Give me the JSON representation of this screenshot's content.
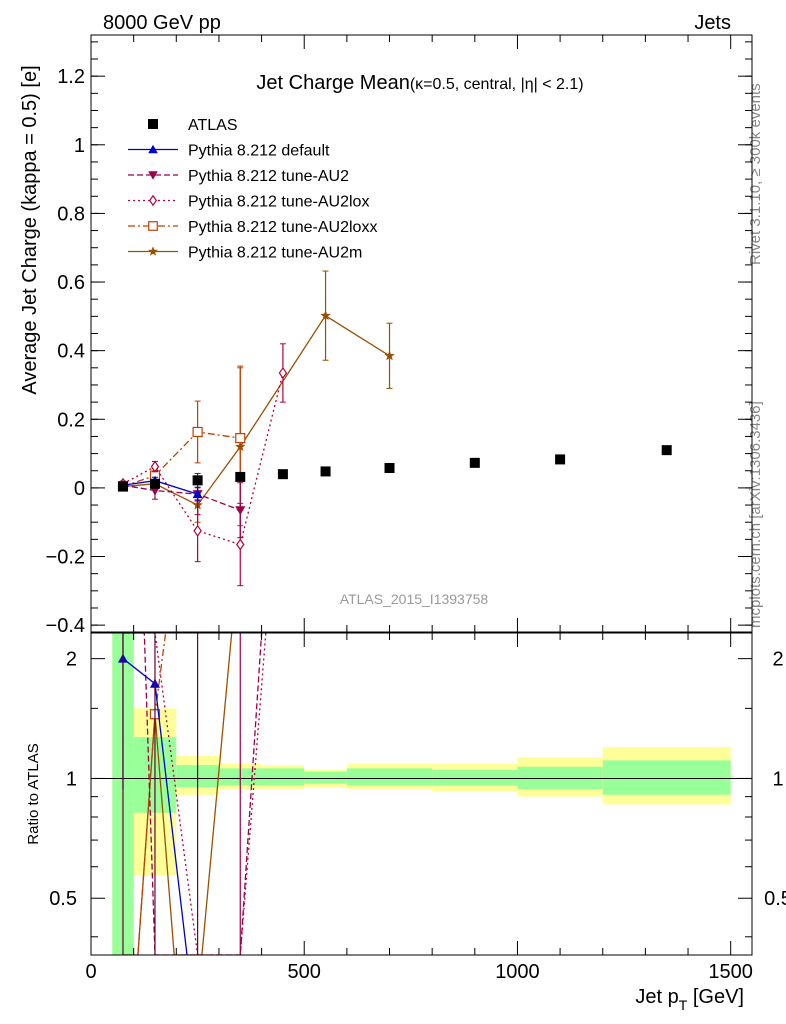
{
  "header": {
    "left": "8000 GeV pp",
    "right": "Jets"
  },
  "side_labels": {
    "rivet": "Rivet 3.1.10, ≥ 300k events",
    "mcplots": "mcplots.cern.ch [arXiv:1306.3436]"
  },
  "chart_data": [
    {
      "type": "scatter",
      "title_main": "Jet Charge Mean",
      "title_sub": "(κ=0.5, central, |η| < 2.1)",
      "ylabel": "Average Jet Charge (kappa = 0.5) [e]",
      "watermark": "ATLAS_2015_I1393758",
      "xlim": [
        0,
        1550
      ],
      "ylim": [
        -0.42,
        1.32
      ],
      "yticks": [
        -0.4,
        -0.2,
        0,
        0.2,
        0.4,
        0.6,
        0.8,
        1,
        1.2
      ],
      "ytick_labels": [
        "−0.4",
        "−0.2",
        "0",
        "0.2",
        "0.4",
        "0.6",
        "0.8",
        "1",
        "1.2"
      ],
      "legend_position": "top-left",
      "series": [
        {
          "name": "ATLAS",
          "color": "#000000",
          "marker": "square",
          "line": "none",
          "points": [
            {
              "x": 75,
              "y": 0.004
            },
            {
              "x": 150,
              "y": 0.012
            },
            {
              "x": 250,
              "y": 0.022
            },
            {
              "x": 350,
              "y": 0.032
            },
            {
              "x": 450,
              "y": 0.04
            },
            {
              "x": 550,
              "y": 0.048
            },
            {
              "x": 700,
              "y": 0.058
            },
            {
              "x": 900,
              "y": 0.073
            },
            {
              "x": 1100,
              "y": 0.083
            },
            {
              "x": 1350,
              "y": 0.11
            }
          ]
        },
        {
          "name": "Pythia 8.212 default",
          "color": "#0000cc",
          "marker": "triangle-up",
          "line": "solid",
          "points": [
            {
              "x": 75,
              "y": 0.008,
              "err": 0.006
            },
            {
              "x": 150,
              "y": 0.021,
              "err": 0.01
            },
            {
              "x": 250,
              "y": -0.018,
              "err": 0.02
            }
          ]
        },
        {
          "name": "Pythia 8.212 tune-AU2",
          "color": "#99004c",
          "marker": "triangle-down",
          "line": "dashed",
          "points": [
            {
              "x": 75,
              "y": 0.008,
              "err": 0.008
            },
            {
              "x": 150,
              "y": -0.008,
              "err": 0.025
            },
            {
              "x": 250,
              "y": -0.018,
              "err": 0.06
            },
            {
              "x": 350,
              "y": -0.065,
              "err": 0.08
            }
          ]
        },
        {
          "name": "Pythia 8.212 tune-AU2lox",
          "color": "#b4003c",
          "marker": "diamond",
          "line": "dotted",
          "points": [
            {
              "x": 75,
              "y": 0.012,
              "err": 0.008
            },
            {
              "x": 150,
              "y": 0.062,
              "err": 0.015
            },
            {
              "x": 250,
              "y": -0.125,
              "err": 0.09
            },
            {
              "x": 350,
              "y": -0.165,
              "err": 0.12
            },
            {
              "x": 450,
              "y": 0.335,
              "err": 0.085
            }
          ]
        },
        {
          "name": "Pythia 8.212 tune-AU2loxx",
          "color": "#c04000",
          "marker": "open-square",
          "line": "dashdot",
          "points": [
            {
              "x": 75,
              "y": 0.004,
              "err": 0.008
            },
            {
              "x": 150,
              "y": 0.036,
              "err": 0.02
            },
            {
              "x": 250,
              "y": 0.163,
              "err": 0.09
            },
            {
              "x": 350,
              "y": 0.145,
              "err": 0.21
            }
          ]
        },
        {
          "name": "Pythia 8.212 tune-AU2m",
          "color": "#995000",
          "marker": "star",
          "line": "solid",
          "points": [
            {
              "x": 75,
              "y": 0.004,
              "err": 0.008
            },
            {
              "x": 150,
              "y": 0.012,
              "err": 0.015
            },
            {
              "x": 250,
              "y": -0.05,
              "err": 0.05
            },
            {
              "x": 350,
              "y": 0.12,
              "err": 0.23
            },
            {
              "x": 550,
              "y": 0.502,
              "err": 0.13
            },
            {
              "x": 700,
              "y": 0.385,
              "err": 0.095
            }
          ]
        }
      ]
    },
    {
      "type": "line",
      "ylabel": "Ratio to ATLAS",
      "xlabel_main": "Jet p",
      "xlabel_sub": "T",
      "xlabel_unit": " [GeV]",
      "xlim": [
        0,
        1550
      ],
      "ylim": [
        0.36,
        2.32
      ],
      "ylog": true,
      "xticks": [
        0,
        500,
        1000,
        1500
      ],
      "xtick_labels": [
        "0",
        "500",
        "1000",
        "1500"
      ],
      "yticks": [
        0.5,
        1,
        2
      ],
      "ytick_labels": [
        "0.5",
        "1",
        "2"
      ],
      "bands": [
        {
          "x0": 50,
          "x1": 100,
          "green": [
            0.36,
            2.32
          ],
          "yellow": [
            0.36,
            2.32
          ]
        },
        {
          "x0": 100,
          "x1": 200,
          "green": [
            0.82,
            1.27
          ],
          "yellow": [
            0.57,
            1.5
          ]
        },
        {
          "x0": 200,
          "x1": 300,
          "green": [
            0.95,
            1.08
          ],
          "yellow": [
            0.91,
            1.14
          ]
        },
        {
          "x0": 300,
          "x1": 400,
          "green": [
            0.96,
            1.06
          ],
          "yellow": [
            0.94,
            1.09
          ]
        },
        {
          "x0": 400,
          "x1": 500,
          "green": [
            0.96,
            1.06
          ],
          "yellow": [
            0.94,
            1.08
          ]
        },
        {
          "x0": 500,
          "x1": 600,
          "green": [
            0.97,
            1.04
          ],
          "yellow": [
            0.95,
            1.05
          ]
        },
        {
          "x0": 600,
          "x1": 800,
          "green": [
            0.96,
            1.06
          ],
          "yellow": [
            0.94,
            1.09
          ]
        },
        {
          "x0": 800,
          "x1": 1000,
          "green": [
            0.96,
            1.05
          ],
          "yellow": [
            0.93,
            1.09
          ]
        },
        {
          "x0": 1000,
          "x1": 1200,
          "green": [
            0.94,
            1.07
          ],
          "yellow": [
            0.9,
            1.13
          ]
        },
        {
          "x0": 1200,
          "x1": 1500,
          "green": [
            0.91,
            1.11
          ],
          "yellow": [
            0.86,
            1.2
          ]
        }
      ],
      "series": [
        {
          "name": "Pythia 8.212 default",
          "points": [
            {
              "x": 75,
              "y": 2.0,
              "err": 1.06
            },
            {
              "x": 150,
              "y": 1.73,
              "err": 0.05
            },
            {
              "x": 225,
              "y": 0.36
            }
          ]
        },
        {
          "name": "Pythia 8.212 tune-AU2",
          "points": [
            {
              "x": 75,
              "y": 2.32
            },
            {
              "x": 125,
              "y": 2.32
            },
            {
              "x": 150,
              "y": 0.36
            },
            {
              "x": 250,
              "y": 0.36
            },
            {
              "x": 350,
              "y": 0.36
            },
            {
              "x": 400,
              "y": 2.32
            }
          ]
        },
        {
          "name": "Pythia 8.212 tune-AU2lox",
          "points": [
            {
              "x": 75,
              "y": 2.32
            },
            {
              "x": 150,
              "y": 2.32
            },
            {
              "x": 250,
              "y": 0.36
            },
            {
              "x": 350,
              "y": 0.36
            },
            {
              "x": 410,
              "y": 2.32
            }
          ]
        },
        {
          "name": "Pythia 8.212 tune-AU2loxx",
          "points": [
            {
              "x": 75,
              "y": 0.36
            },
            {
              "x": 110,
              "y": 0.36
            },
            {
              "x": 150,
              "y": 1.45
            },
            {
              "x": 175,
              "y": 2.32
            }
          ]
        },
        {
          "name": "Pythia 8.212 tune-AU2m",
          "points": [
            {
              "x": 75,
              "y": 0.36
            },
            {
              "x": 110,
              "y": 0.36
            },
            {
              "x": 150,
              "y": 1.45
            },
            {
              "x": 195,
              "y": 0.36
            },
            {
              "x": 260,
              "y": 0.36
            },
            {
              "x": 330,
              "y": 2.32
            }
          ]
        }
      ]
    }
  ]
}
